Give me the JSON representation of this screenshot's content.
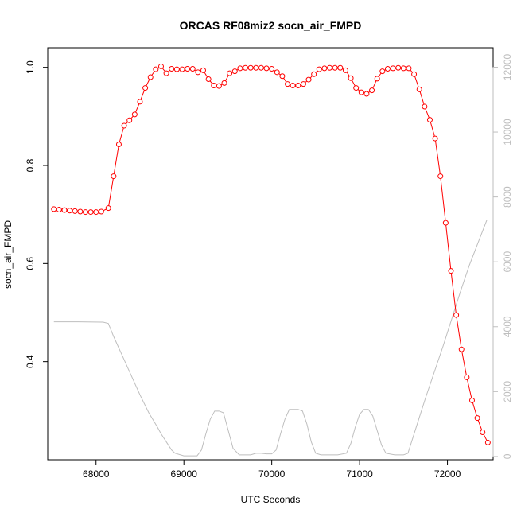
{
  "chart_data": {
    "type": "line",
    "title": "ORCAS RF08miz2 socn_air_FMPD",
    "xlabel": "UTC Seconds",
    "ylabel": "socn_air_FMPD",
    "xlim": [
      67450,
      72520
    ],
    "ylim": [
      0.2,
      1.04
    ],
    "y2lim": [
      -100,
      12600
    ],
    "x_ticks": [
      68000,
      69000,
      70000,
      71000,
      72000
    ],
    "y_ticks": [
      0.4,
      0.6,
      0.8,
      1.0
    ],
    "y_tick_labels": [
      "0.4",
      "0.6",
      "0.8",
      "1.0"
    ],
    "y2_ticks": [
      0,
      2000,
      4000,
      6000,
      8000,
      10000,
      12000
    ],
    "grid": false,
    "legend": "none",
    "colors": {
      "primary": "#ff0000",
      "secondary": "#bebebe",
      "axis": "#000000"
    },
    "series": [
      {
        "axis": "left",
        "style": "line+markers",
        "x": [
          67520,
          67580,
          67640,
          67700,
          67760,
          67820,
          67880,
          67940,
          68000,
          68060,
          68140,
          68200,
          68260,
          68320,
          68380,
          68440,
          68500,
          68560,
          68620,
          68680,
          68740,
          68800,
          68860,
          68920,
          68980,
          69040,
          69100,
          69160,
          69220,
          69280,
          69340,
          69400,
          69460,
          69520,
          69580,
          69640,
          69700,
          69760,
          69820,
          69880,
          69940,
          70000,
          70060,
          70120,
          70180,
          70240,
          70300,
          70360,
          70420,
          70480,
          70540,
          70600,
          70660,
          70720,
          70780,
          70840,
          70900,
          70960,
          71020,
          71080,
          71140,
          71200,
          71260,
          71320,
          71380,
          71440,
          71500,
          71560,
          71620,
          71680,
          71740,
          71800,
          71860,
          71920,
          71980,
          72040,
          72100,
          72160,
          72220,
          72280,
          72340,
          72400,
          72460
        ],
        "y": [
          0.711,
          0.71,
          0.709,
          0.708,
          0.707,
          0.706,
          0.705,
          0.705,
          0.705,
          0.706,
          0.713,
          0.778,
          0.843,
          0.881,
          0.892,
          0.904,
          0.93,
          0.958,
          0.98,
          0.996,
          1.002,
          0.988,
          0.997,
          0.996,
          0.996,
          0.997,
          0.997,
          0.99,
          0.994,
          0.976,
          0.963,
          0.962,
          0.968,
          0.988,
          0.992,
          0.998,
          0.999,
          0.999,
          0.999,
          0.999,
          0.998,
          0.997,
          0.99,
          0.982,
          0.966,
          0.963,
          0.963,
          0.966,
          0.975,
          0.986,
          0.996,
          0.998,
          0.999,
          0.999,
          0.999,
          0.994,
          0.978,
          0.958,
          0.949,
          0.946,
          0.953,
          0.977,
          0.992,
          0.997,
          0.998,
          0.999,
          0.998,
          0.998,
          0.986,
          0.955,
          0.92,
          0.893,
          0.855,
          0.778,
          0.683,
          0.585,
          0.495,
          0.425,
          0.368,
          0.321,
          0.285,
          0.256,
          0.235
        ]
      },
      {
        "axis": "right",
        "style": "line",
        "x": [
          67520,
          67800,
          68080,
          68140,
          68200,
          68300,
          68400,
          68500,
          68600,
          68700,
          68740,
          68800,
          68860,
          68900,
          69000,
          69100,
          69150,
          69200,
          69250,
          69300,
          69350,
          69400,
          69450,
          69500,
          69560,
          69630,
          69700,
          69760,
          69820,
          69880,
          69940,
          70000,
          70050,
          70100,
          70150,
          70200,
          70250,
          70300,
          70350,
          70400,
          70450,
          70500,
          70560,
          70650,
          70750,
          70850,
          70900,
          70950,
          71000,
          71050,
          71100,
          71150,
          71200,
          71250,
          71300,
          71400,
          71500,
          71550,
          71650,
          71750,
          71850,
          71950,
          72050,
          72150,
          72250,
          72350,
          72450
        ],
        "y": [
          4150,
          4150,
          4140,
          4100,
          3700,
          3100,
          2500,
          1900,
          1350,
          900,
          700,
          450,
          200,
          100,
          20,
          20,
          20,
          200,
          700,
          1150,
          1400,
          1400,
          1350,
          850,
          250,
          50,
          50,
          50,
          100,
          100,
          80,
          80,
          200,
          700,
          1150,
          1450,
          1450,
          1450,
          1400,
          1000,
          450,
          100,
          50,
          50,
          50,
          100,
          400,
          900,
          1300,
          1450,
          1450,
          1250,
          800,
          350,
          100,
          50,
          50,
          100,
          950,
          1800,
          2600,
          3400,
          4250,
          5100,
          5900,
          6600,
          7300
        ]
      }
    ]
  }
}
